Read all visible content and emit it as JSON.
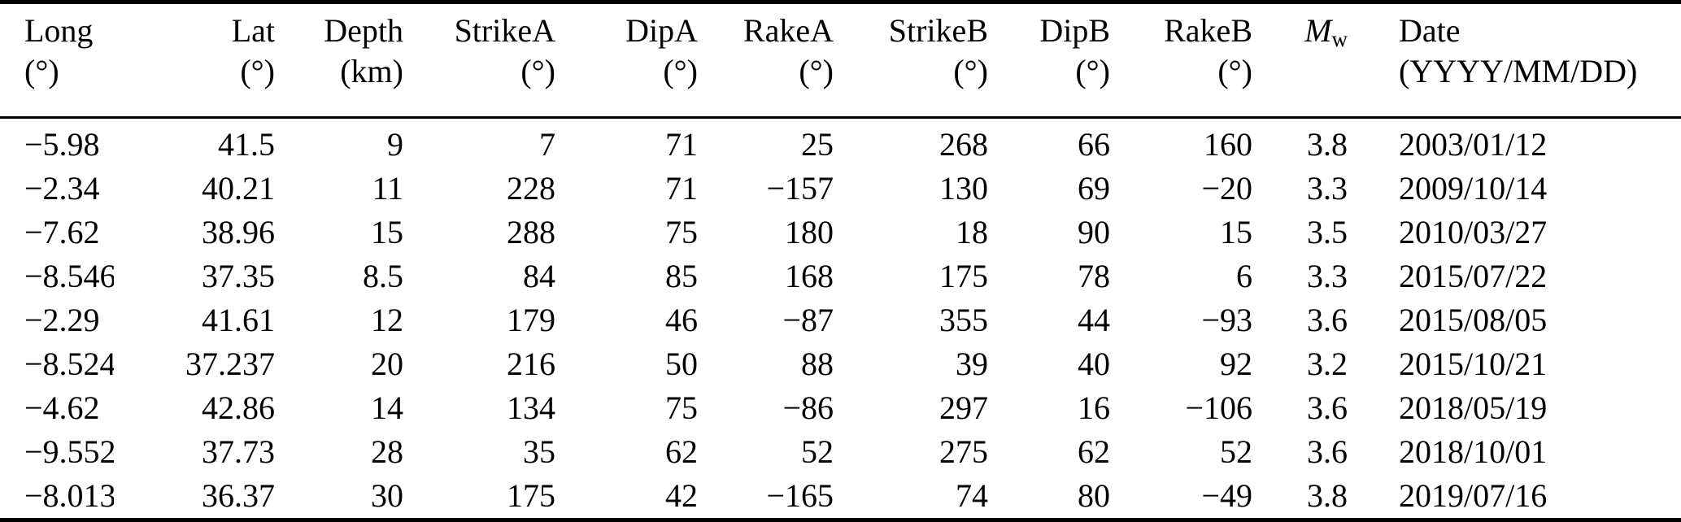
{
  "table": {
    "headers": [
      {
        "key": "long",
        "name": "Long",
        "unit": "(°)"
      },
      {
        "key": "lat",
        "name": "Lat",
        "unit": "(°)"
      },
      {
        "key": "depth",
        "name": "Depth",
        "unit": "(km)"
      },
      {
        "key": "strike_a",
        "name": "StrikeA",
        "unit": "(°)"
      },
      {
        "key": "dip_a",
        "name": "DipA",
        "unit": "(°)"
      },
      {
        "key": "rake_a",
        "name": "RakeA",
        "unit": "(°)"
      },
      {
        "key": "strike_b",
        "name": "StrikeB",
        "unit": "(°)"
      },
      {
        "key": "dip_b",
        "name": "DipB",
        "unit": "(°)"
      },
      {
        "key": "rake_b",
        "name": "RakeB",
        "unit": "(°)"
      },
      {
        "key": "mw",
        "name": "M",
        "sub": "w",
        "unit": ""
      },
      {
        "key": "date",
        "name": "Date",
        "unit": "(YYYY/MM/DD)"
      }
    ],
    "rows": [
      [
        "−5.98",
        "41.5",
        "9",
        "7",
        "71",
        "25",
        "268",
        "66",
        "160",
        "3.8",
        "2003/01/12"
      ],
      [
        "−2.34",
        "40.21",
        "11",
        "228",
        "71",
        "−157",
        "130",
        "69",
        "−20",
        "3.3",
        "2009/10/14"
      ],
      [
        "−7.62",
        "38.96",
        "15",
        "288",
        "75",
        "180",
        "18",
        "90",
        "15",
        "3.5",
        "2010/03/27"
      ],
      [
        "−8.546",
        "37.35",
        "8.5",
        "84",
        "85",
        "168",
        "175",
        "78",
        "6",
        "3.3",
        "2015/07/22"
      ],
      [
        "−2.29",
        "41.61",
        "12",
        "179",
        "46",
        "−87",
        "355",
        "44",
        "−93",
        "3.6",
        "2015/08/05"
      ],
      [
        "−8.524",
        "37.237",
        "20",
        "216",
        "50",
        "88",
        "39",
        "40",
        "92",
        "3.2",
        "2015/10/21"
      ],
      [
        "−4.62",
        "42.86",
        "14",
        "134",
        "75",
        "−86",
        "297",
        "16",
        "−106",
        "3.6",
        "2018/05/19"
      ],
      [
        "−9.552",
        "37.73",
        "28",
        "35",
        "62",
        "52",
        "275",
        "62",
        "52",
        "3.6",
        "2018/10/01"
      ],
      [
        "−8.013",
        "36.37",
        "30",
        "175",
        "42",
        "−165",
        "74",
        "80",
        "−49",
        "3.8",
        "2019/07/16"
      ]
    ]
  }
}
